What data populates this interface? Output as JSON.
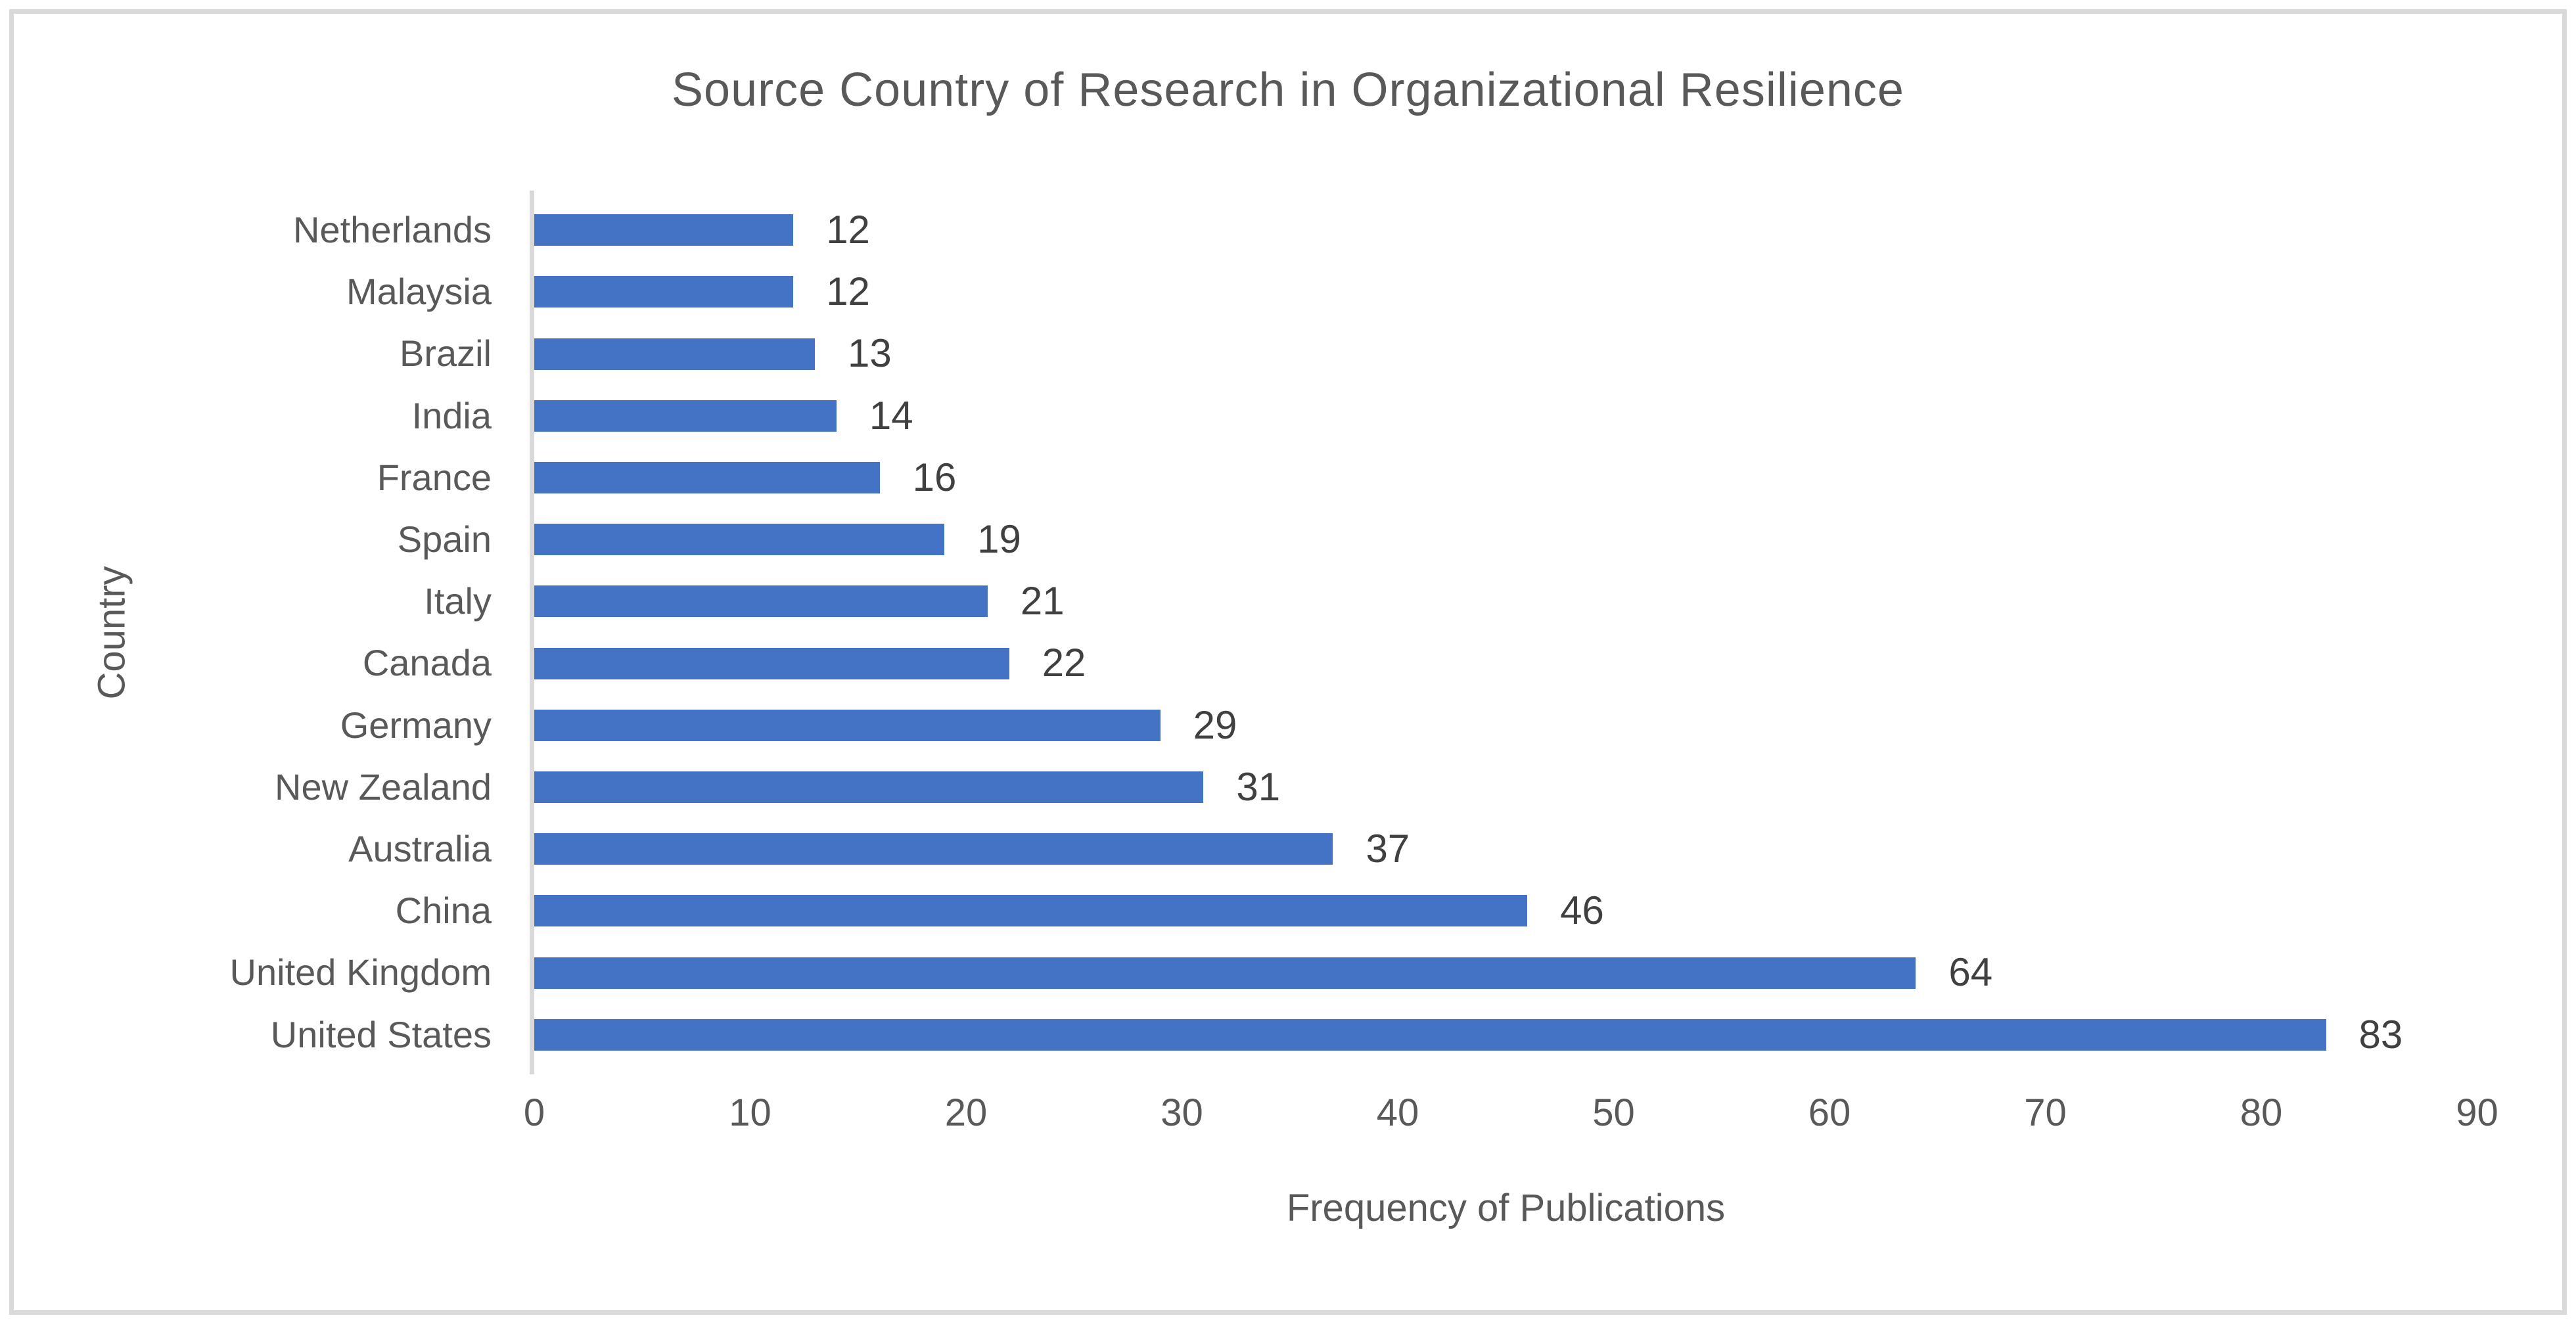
{
  "chart_data": {
    "type": "bar",
    "orientation": "horizontal",
    "title": "Source Country of Research in Organizational Resilience",
    "xlabel": "Frequency of Publications",
    "ylabel": "Country",
    "categories": [
      "Netherlands",
      "Malaysia",
      "Brazil",
      "India",
      "France",
      "Spain",
      "Italy",
      "Canada",
      "Germany",
      "New Zealand",
      "Australia",
      "China",
      "United Kingdom",
      "United States"
    ],
    "values": [
      12,
      12,
      13,
      14,
      16,
      19,
      21,
      22,
      29,
      31,
      37,
      46,
      64,
      83
    ],
    "x_ticks": [
      0,
      10,
      20,
      30,
      40,
      50,
      60,
      70,
      80,
      90
    ],
    "xlim": [
      0,
      90
    ],
    "grid": false,
    "legend": "none",
    "data_labels": true,
    "colors": {
      "bar": "#4472C4",
      "title_text": "#595959",
      "axis_text": "#595959",
      "value_label_text": "#404040",
      "axis_line": "#D9D9D9",
      "border": "#D9D9D9",
      "background": "#FFFFFF"
    }
  }
}
